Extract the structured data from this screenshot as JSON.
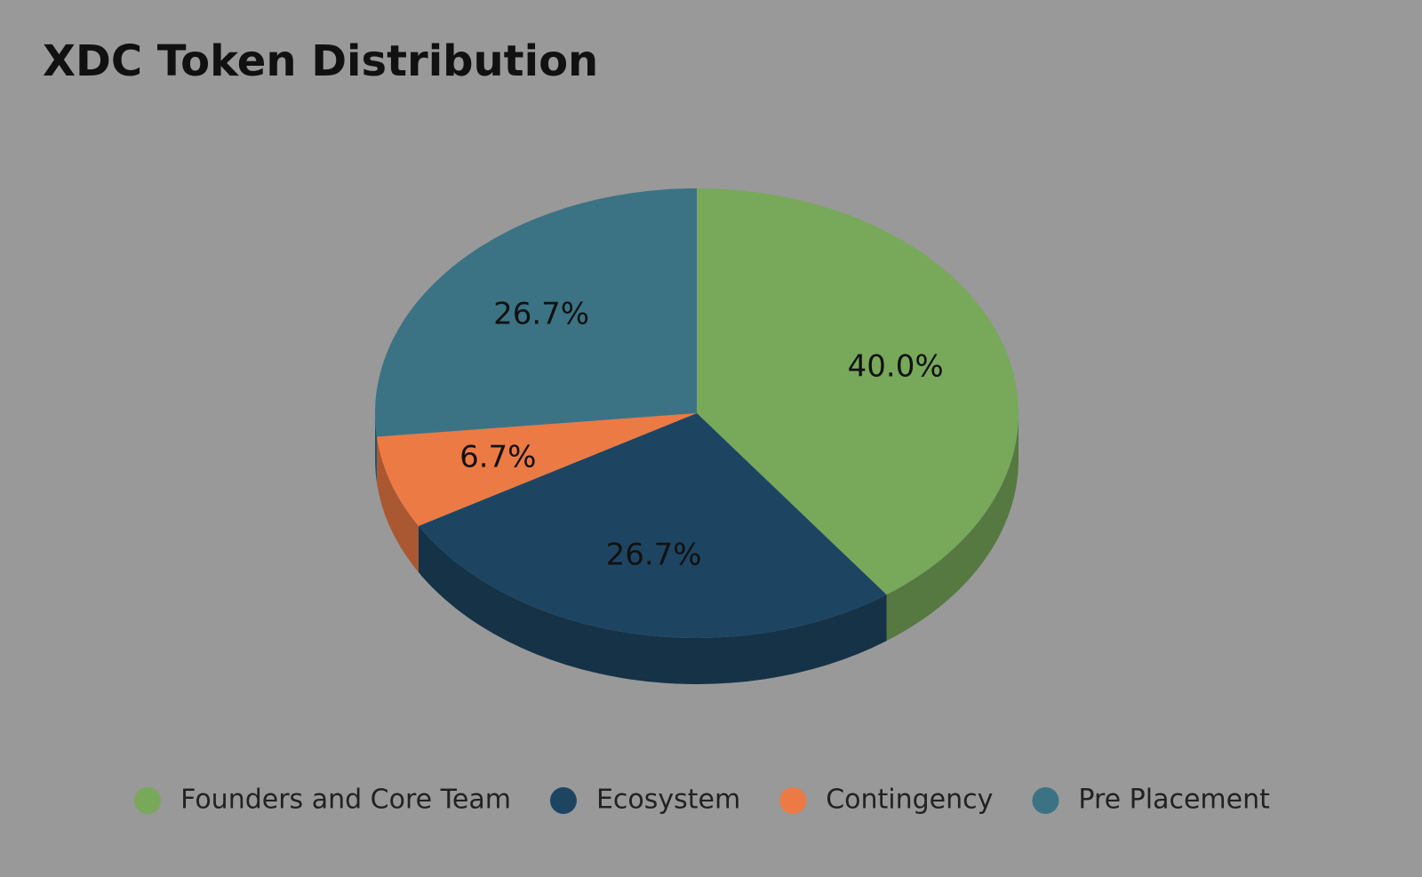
{
  "chart_data": {
    "type": "pie",
    "title": "XDC Token Distribution",
    "categories": [
      "Founders and Core Team",
      "Ecosystem",
      "Contingency",
      "Pre Placement"
    ],
    "values": [
      40,
      26.7,
      6.7,
      26.7
    ],
    "value_labels": [
      "40.0%",
      "26.7%",
      "6.7%",
      "26.7%"
    ],
    "colors": [
      "#78a85a",
      "#1d4562",
      "#ec7a45",
      "#3b7384"
    ],
    "legend": "bottom"
  }
}
